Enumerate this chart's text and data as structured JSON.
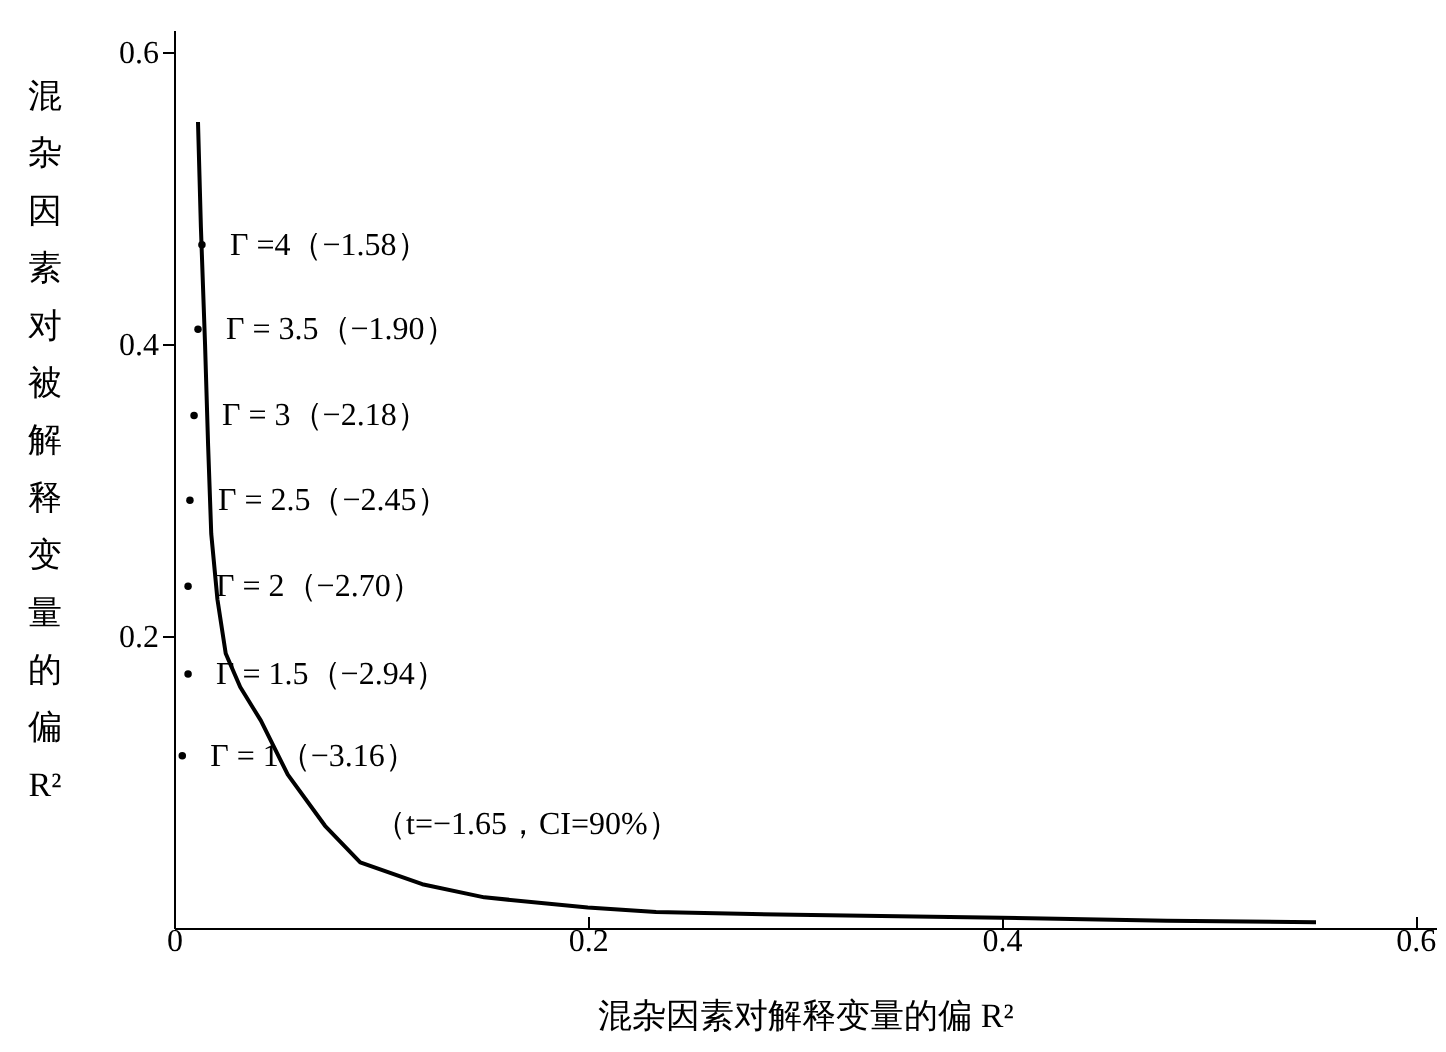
{
  "chart_data": {
    "type": "line",
    "xlabel": "混杂因素对解释变量的偏 R²",
    "ylabel": "混杂因素对被解释变量的偏R²",
    "xlim": [
      0,
      0.61
    ],
    "ylim": [
      0,
      0.615
    ],
    "xticks": [
      0,
      0.2,
      0.4,
      0.6
    ],
    "yticks": [
      0.2,
      0.4,
      0.6
    ],
    "series": [
      {
        "color": "#000000",
        "line_style": "solid",
        "marker": "none",
        "x": [
          0.0116,
          0.013,
          0.015,
          0.0165,
          0.018,
          0.021,
          0.025,
          0.032,
          0.042,
          0.055,
          0.073,
          0.09,
          0.12,
          0.15,
          0.2,
          0.233,
          0.3,
          0.4,
          0.48,
          0.552
        ],
        "values": [
          0.552,
          0.48,
          0.4,
          0.33,
          0.27,
          0.225,
          0.188,
          0.165,
          0.142,
          0.105,
          0.07,
          0.045,
          0.03,
          0.021,
          0.014,
          0.011,
          0.009,
          0.007,
          0.005,
          0.004
        ]
      },
      {
        "type": "scatter",
        "color": "#000000",
        "marker": "circle",
        "x": [
          0.0135,
          0.0116,
          0.0097,
          0.0077,
          0.0068,
          0.0068,
          0.004
        ],
        "values": [
          0.468,
          0.41,
          0.351,
          0.293,
          0.234,
          0.174,
          0.118
        ]
      }
    ],
    "annotations": [
      {
        "text": "Γ =4（−1.58）",
        "x": 0.0135,
        "y": 0.468
      },
      {
        "text": "Γ = 3.5（−1.90）",
        "x": 0.0116,
        "y": 0.41
      },
      {
        "text": "Γ = 3（−2.18）",
        "x": 0.0097,
        "y": 0.351
      },
      {
        "text": "Γ = 2.5（−2.45）",
        "x": 0.0077,
        "y": 0.293
      },
      {
        "text": "Γ = 2（−2.70）",
        "x": 0.0068,
        "y": 0.234
      },
      {
        "text": "Γ = 1.5（−2.94）",
        "x": 0.0068,
        "y": 0.174
      },
      {
        "text": "Γ = 1（−3.16）",
        "x": 0.004,
        "y": 0.118
      },
      "（t=−1.65，CI=90%）"
    ]
  }
}
